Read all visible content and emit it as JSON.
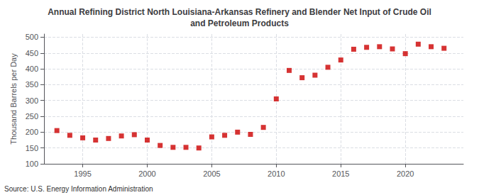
{
  "chart_data": {
    "type": "scatter",
    "title": "Annual Refining District North Louisiana-Arkansas Refinery and Blender Net Input of Crude Oil\nand Petroleum Products",
    "ylabel": "Thousand Barrels per Day",
    "annotations": [
      "Source: U.S. Energy Information Administration"
    ],
    "x": [
      1993,
      1994,
      1995,
      1996,
      1997,
      1998,
      1999,
      2000,
      2001,
      2002,
      2003,
      2004,
      2005,
      2006,
      2007,
      2008,
      2009,
      2010,
      2011,
      2012,
      2013,
      2014,
      2015,
      2016,
      2017,
      2018,
      2019,
      2020,
      2021,
      2022,
      2023
    ],
    "values": [
      205,
      190,
      182,
      175,
      180,
      188,
      192,
      175,
      158,
      152,
      152,
      150,
      185,
      190,
      200,
      193,
      215,
      305,
      395,
      372,
      380,
      405,
      428,
      462,
      468,
      470,
      463,
      448,
      478,
      470,
      465
    ],
    "color": "#cc0000",
    "marker": "square",
    "xlim": [
      1992.0,
      2024.5
    ],
    "xticks": [
      1995,
      2000,
      2005,
      2010,
      2015,
      2020
    ],
    "ylim": [
      100,
      510
    ],
    "yticks": [
      100,
      150,
      200,
      250,
      300,
      350,
      400,
      450,
      500
    ],
    "grid": true
  }
}
